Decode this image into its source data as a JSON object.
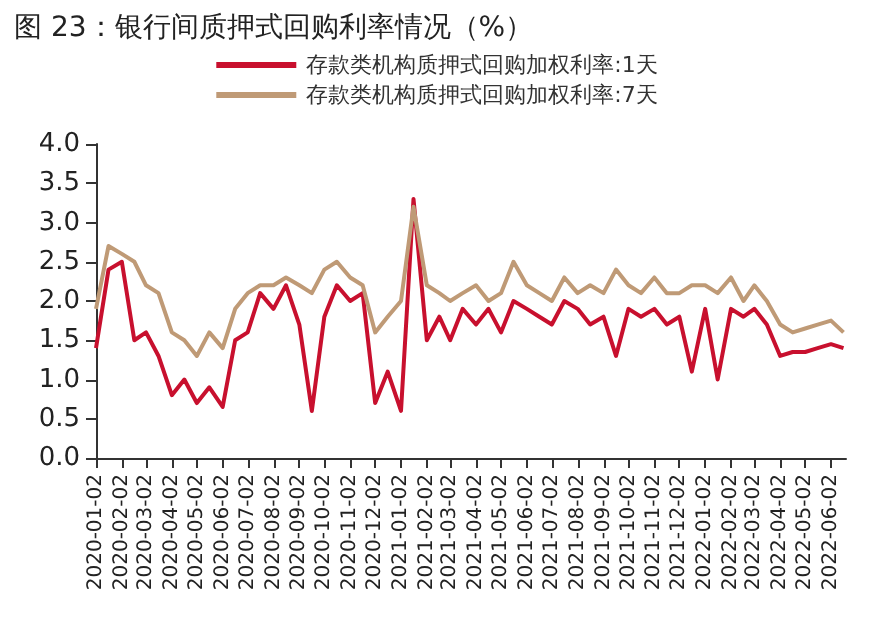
{
  "chart_data": {
    "type": "line",
    "title": "图 23：银行间质押式回购利率情况（%）",
    "x": [
      "2020-01-02",
      "2020-01-17",
      "2020-02-02",
      "2020-02-17",
      "2020-03-02",
      "2020-03-17",
      "2020-04-02",
      "2020-04-17",
      "2020-05-02",
      "2020-05-17",
      "2020-06-02",
      "2020-06-17",
      "2020-07-02",
      "2020-07-17",
      "2020-08-02",
      "2020-08-17",
      "2020-09-02",
      "2020-09-17",
      "2020-10-02",
      "2020-10-17",
      "2020-11-02",
      "2020-11-17",
      "2020-12-02",
      "2020-12-17",
      "2021-01-02",
      "2021-01-17",
      "2021-02-02",
      "2021-02-17",
      "2021-03-02",
      "2021-03-17",
      "2021-04-02",
      "2021-04-17",
      "2021-05-02",
      "2021-05-17",
      "2021-06-02",
      "2021-06-17",
      "2021-07-02",
      "2021-07-17",
      "2021-08-02",
      "2021-08-17",
      "2021-09-02",
      "2021-09-17",
      "2021-10-02",
      "2021-10-17",
      "2021-11-02",
      "2021-11-17",
      "2021-12-02",
      "2021-12-17",
      "2022-01-02",
      "2022-01-17",
      "2022-02-02",
      "2022-02-17",
      "2022-03-02",
      "2022-03-17",
      "2022-04-02",
      "2022-04-17",
      "2022-05-02",
      "2022-05-17",
      "2022-06-02",
      "2022-06-17"
    ],
    "series": [
      {
        "name": "存款类机构质押式回购加权利率:1天",
        "color": "#c8102e",
        "values": [
          1.4,
          2.4,
          2.5,
          1.5,
          1.6,
          1.3,
          0.8,
          1.0,
          0.7,
          0.9,
          0.65,
          1.5,
          1.6,
          2.1,
          1.9,
          2.2,
          1.7,
          0.6,
          1.8,
          2.2,
          2.0,
          2.1,
          0.7,
          1.1,
          0.6,
          3.3,
          1.5,
          1.8,
          1.5,
          1.9,
          1.7,
          1.9,
          1.6,
          2.0,
          1.9,
          1.8,
          1.7,
          2.0,
          1.9,
          1.7,
          1.8,
          1.3,
          1.9,
          1.8,
          1.9,
          1.7,
          1.8,
          1.1,
          1.9,
          1.0,
          1.9,
          1.8,
          1.9,
          1.7,
          1.3,
          1.35,
          1.35,
          1.4,
          1.45,
          1.4
        ]
      },
      {
        "name": "存款类机构质押式回购加权利率:7天",
        "color": "#bf9a76",
        "values": [
          1.9,
          2.7,
          2.6,
          2.5,
          2.2,
          2.1,
          1.6,
          1.5,
          1.3,
          1.6,
          1.4,
          1.9,
          2.1,
          2.2,
          2.2,
          2.3,
          2.2,
          2.1,
          2.4,
          2.5,
          2.3,
          2.2,
          1.6,
          1.8,
          2.0,
          3.2,
          2.2,
          2.1,
          2.0,
          2.1,
          2.2,
          2.0,
          2.1,
          2.5,
          2.2,
          2.1,
          2.0,
          2.3,
          2.1,
          2.2,
          2.1,
          2.4,
          2.2,
          2.1,
          2.3,
          2.1,
          2.1,
          2.2,
          2.2,
          2.1,
          2.3,
          2.0,
          2.2,
          2.0,
          1.7,
          1.6,
          1.65,
          1.7,
          1.75,
          1.6
        ]
      }
    ],
    "xlim": [
      "2020-01-02",
      "2022-06-20"
    ],
    "xticks": [
      "2020-01-02",
      "2020-02-02",
      "2020-03-02",
      "2020-04-02",
      "2020-05-02",
      "2020-06-02",
      "2020-07-02",
      "2020-08-02",
      "2020-09-02",
      "2020-10-02",
      "2020-11-02",
      "2020-12-02",
      "2021-01-02",
      "2021-02-02",
      "2021-03-02",
      "2021-04-02",
      "2021-05-02",
      "2021-06-02",
      "2021-07-02",
      "2021-08-02",
      "2021-09-02",
      "2021-10-02",
      "2021-11-02",
      "2021-12-02",
      "2022-01-02",
      "2022-02-02",
      "2022-03-02",
      "2022-04-02",
      "2022-05-02",
      "2022-06-02"
    ],
    "ylim": [
      0,
      4
    ],
    "yticks": [
      {
        "value": 0,
        "label": "0.0"
      },
      0.5,
      {
        "value": 1,
        "label": "1.0"
      },
      1.5,
      {
        "value": 2,
        "label": "2.0"
      },
      2.5,
      {
        "value": 3,
        "label": "3.0"
      },
      3.5,
      {
        "value": 4,
        "label": "4.0"
      }
    ],
    "legend": "top",
    "grid": false,
    "marker": "none",
    "line_style": "solid"
  }
}
